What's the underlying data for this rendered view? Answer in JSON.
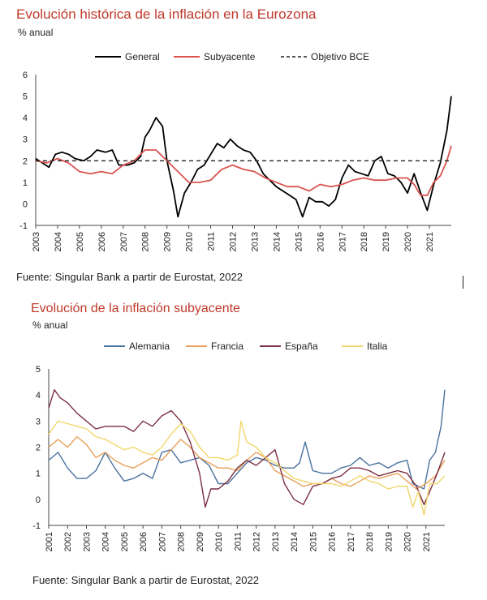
{
  "chart_data": [
    {
      "type": "line",
      "title": "Evolución histórica de la inflación en la Eurozona",
      "ylabel": "% anual",
      "ylim": [
        -1,
        6
      ],
      "yticks": [
        6,
        5,
        4,
        3,
        2,
        1,
        0,
        "-1"
      ],
      "x_ticks": [
        "2003",
        "2004",
        "2005",
        "2006",
        "2007",
        "2008",
        "2009",
        "2010",
        "2011",
        "2012",
        "2013",
        "2014",
        "2015",
        "2016",
        "2017",
        "2018",
        "2019",
        "2020",
        "2021"
      ],
      "legend_position": "top",
      "grid": false,
      "source": "Fuente: Singular Bank a partir de Eurostat, 2022",
      "series": [
        {
          "name": "General",
          "color": "#000000",
          "style": "solid",
          "x": [
            2003.0,
            2003.3,
            2003.6,
            2003.9,
            2004.2,
            2004.5,
            2004.8,
            2005.2,
            2005.5,
            2005.8,
            2006.2,
            2006.5,
            2006.8,
            2007.2,
            2007.5,
            2007.8,
            2008.0,
            2008.2,
            2008.5,
            2008.8,
            2009.0,
            2009.3,
            2009.5,
            2009.8,
            2010.1,
            2010.4,
            2010.7,
            2011.0,
            2011.3,
            2011.6,
            2011.9,
            2012.2,
            2012.5,
            2012.8,
            2013.1,
            2013.4,
            2013.7,
            2014.0,
            2014.3,
            2014.6,
            2014.9,
            2015.2,
            2015.5,
            2015.8,
            2016.1,
            2016.4,
            2016.7,
            2017.0,
            2017.3,
            2017.6,
            2017.9,
            2018.2,
            2018.5,
            2018.8,
            2019.1,
            2019.4,
            2019.7,
            2020.0,
            2020.3,
            2020.6,
            2020.9,
            2021.2,
            2021.5,
            2021.8,
            2022.0
          ],
          "y": [
            2.1,
            1.9,
            1.7,
            2.3,
            2.4,
            2.3,
            2.1,
            2.0,
            2.2,
            2.5,
            2.4,
            2.5,
            1.8,
            1.8,
            1.9,
            2.2,
            3.1,
            3.4,
            4.0,
            3.6,
            2.0,
            0.6,
            -0.6,
            0.5,
            1.0,
            1.6,
            1.8,
            2.3,
            2.8,
            2.6,
            3.0,
            2.7,
            2.5,
            2.4,
            2.0,
            1.4,
            1.1,
            0.8,
            0.6,
            0.4,
            0.2,
            -0.6,
            0.3,
            0.1,
            0.1,
            -0.1,
            0.2,
            1.2,
            1.8,
            1.5,
            1.4,
            1.3,
            2.0,
            2.2,
            1.4,
            1.3,
            1.0,
            0.5,
            1.4,
            0.5,
            -0.3,
            0.9,
            1.9,
            3.4,
            5.0
          ]
        },
        {
          "name": "Subyacente",
          "color": "#d9534f",
          "style": "solid",
          "x": [
            2003.0,
            2003.5,
            2004.0,
            2004.5,
            2005.0,
            2005.5,
            2006.0,
            2006.5,
            2007.0,
            2007.5,
            2008.0,
            2008.5,
            2009.0,
            2009.5,
            2010.0,
            2010.5,
            2011.0,
            2011.5,
            2012.0,
            2012.5,
            2013.0,
            2013.5,
            2014.0,
            2014.5,
            2015.0,
            2015.5,
            2016.0,
            2016.5,
            2017.0,
            2017.5,
            2018.0,
            2018.5,
            2019.0,
            2019.5,
            2020.0,
            2020.3,
            2020.6,
            2020.9,
            2021.2,
            2021.5,
            2021.8,
            2022.0
          ],
          "y": [
            2.0,
            1.9,
            2.1,
            1.9,
            1.5,
            1.4,
            1.5,
            1.4,
            1.8,
            2.0,
            2.5,
            2.5,
            2.0,
            1.5,
            1.0,
            1.0,
            1.1,
            1.6,
            1.8,
            1.6,
            1.5,
            1.2,
            1.0,
            0.8,
            0.8,
            0.6,
            0.9,
            0.8,
            0.9,
            1.1,
            1.2,
            1.1,
            1.1,
            1.2,
            1.2,
            0.9,
            0.4,
            0.4,
            1.0,
            1.3,
            2.0,
            2.7
          ]
        },
        {
          "name": "Objetivo BCE",
          "color": "#222222",
          "style": "dashed",
          "x": [
            2003.0,
            2022.0
          ],
          "y": [
            2.0,
            2.0
          ]
        }
      ]
    },
    {
      "type": "line",
      "title": "Evolución de la inflación subyacente",
      "ylabel": "% anual",
      "ylim": [
        -1,
        5
      ],
      "yticks": [
        5,
        4,
        3,
        2,
        1,
        0,
        "-1"
      ],
      "x_ticks": [
        "2001",
        "2002",
        "2003",
        "2004",
        "2005",
        "2006",
        "2007",
        "2008",
        "2009",
        "2010",
        "2011",
        "2012",
        "2013",
        "2014",
        "2015",
        "2016",
        "2017",
        "2018",
        "2019",
        "2020",
        "2021"
      ],
      "legend_position": "top",
      "grid": false,
      "source": "Fuente: Singular Bank a partir de Eurostat, 2022",
      "series": [
        {
          "name": "Alemania",
          "color": "#4a72a0",
          "style": "solid",
          "x": [
            2001.0,
            2001.5,
            2002.0,
            2002.5,
            2003.0,
            2003.5,
            2004.0,
            2004.5,
            2005.0,
            2005.5,
            2006.0,
            2006.5,
            2007.0,
            2007.5,
            2008.0,
            2008.5,
            2009.0,
            2009.5,
            2010.0,
            2010.5,
            2011.0,
            2011.5,
            2012.0,
            2012.5,
            2013.0,
            2013.5,
            2014.0,
            2014.3,
            2014.6,
            2015.0,
            2015.5,
            2016.0,
            2016.5,
            2017.0,
            2017.5,
            2018.0,
            2018.5,
            2019.0,
            2019.5,
            2020.0,
            2020.3,
            2020.6,
            2020.9,
            2021.2,
            2021.5,
            2021.8,
            2022.0
          ],
          "y": [
            1.5,
            1.8,
            1.2,
            0.8,
            0.8,
            1.1,
            1.8,
            1.2,
            0.7,
            0.8,
            1.0,
            0.8,
            1.8,
            1.9,
            1.4,
            1.5,
            1.6,
            1.3,
            0.6,
            0.6,
            1.0,
            1.4,
            1.6,
            1.5,
            1.3,
            1.2,
            1.2,
            1.4,
            2.2,
            1.1,
            1.0,
            1.0,
            1.2,
            1.3,
            1.6,
            1.3,
            1.4,
            1.2,
            1.4,
            1.5,
            0.6,
            0.5,
            0.4,
            1.5,
            1.8,
            2.8,
            4.2
          ]
        },
        {
          "name": "Francia",
          "color": "#e8a05a",
          "style": "solid",
          "x": [
            2001.0,
            2001.5,
            2002.0,
            2002.5,
            2003.0,
            2003.5,
            2004.0,
            2004.5,
            2005.0,
            2005.5,
            2006.0,
            2006.5,
            2007.0,
            2007.5,
            2008.0,
            2008.5,
            2009.0,
            2009.5,
            2010.0,
            2010.5,
            2011.0,
            2011.5,
            2012.0,
            2012.5,
            2013.0,
            2013.5,
            2014.0,
            2014.5,
            2015.0,
            2015.5,
            2016.0,
            2016.5,
            2017.0,
            2017.5,
            2018.0,
            2018.5,
            2019.0,
            2019.5,
            2020.0,
            2020.5,
            2021.0,
            2021.5,
            2022.0
          ],
          "y": [
            2.0,
            2.3,
            2.0,
            2.4,
            2.1,
            1.6,
            1.8,
            1.5,
            1.3,
            1.2,
            1.4,
            1.6,
            1.5,
            1.9,
            2.3,
            2.0,
            1.6,
            1.4,
            1.2,
            1.2,
            1.1,
            1.5,
            1.8,
            1.6,
            1.1,
            0.9,
            0.7,
            0.5,
            0.6,
            0.6,
            0.8,
            0.6,
            0.5,
            0.7,
            0.9,
            0.8,
            0.9,
            1.0,
            0.7,
            0.4,
            0.6,
            0.9,
            1.5
          ]
        },
        {
          "name": "España",
          "color": "#7b2f44",
          "style": "solid",
          "x": [
            2001.0,
            2001.3,
            2001.6,
            2002.0,
            2002.5,
            2003.0,
            2003.5,
            2004.0,
            2004.5,
            2005.0,
            2005.5,
            2006.0,
            2006.5,
            2007.0,
            2007.5,
            2008.0,
            2008.5,
            2009.0,
            2009.3,
            2009.6,
            2010.0,
            2010.5,
            2011.0,
            2011.5,
            2012.0,
            2012.5,
            2013.0,
            2013.5,
            2014.0,
            2014.5,
            2015.0,
            2015.5,
            2016.0,
            2016.5,
            2017.0,
            2017.5,
            2018.0,
            2018.5,
            2019.0,
            2019.5,
            2020.0,
            2020.5,
            2020.9,
            2021.2,
            2021.6,
            2022.0
          ],
          "y": [
            3.5,
            4.2,
            3.9,
            3.7,
            3.3,
            3.0,
            2.7,
            2.8,
            2.8,
            2.8,
            2.6,
            3.0,
            2.8,
            3.2,
            3.4,
            3.0,
            2.2,
            1.0,
            -0.3,
            0.4,
            0.4,
            0.7,
            1.2,
            1.5,
            1.3,
            1.6,
            1.9,
            0.6,
            0.0,
            -0.2,
            0.5,
            0.6,
            0.8,
            0.9,
            1.2,
            1.2,
            1.1,
            0.9,
            1.0,
            1.1,
            1.0,
            0.5,
            -0.2,
            0.3,
            1.0,
            1.8
          ]
        },
        {
          "name": "Italia",
          "color": "#f1d66b",
          "style": "solid",
          "x": [
            2001.0,
            2001.5,
            2002.0,
            2002.5,
            2003.0,
            2003.5,
            2004.0,
            2004.5,
            2005.0,
            2005.5,
            2006.0,
            2006.5,
            2007.0,
            2007.5,
            2008.0,
            2008.5,
            2009.0,
            2009.5,
            2010.0,
            2010.5,
            2011.0,
            2011.2,
            2011.5,
            2012.0,
            2012.5,
            2013.0,
            2013.5,
            2014.0,
            2014.5,
            2015.0,
            2015.5,
            2016.0,
            2016.5,
            2017.0,
            2017.5,
            2018.0,
            2018.5,
            2019.0,
            2019.5,
            2020.0,
            2020.3,
            2020.6,
            2020.9,
            2021.2,
            2021.6,
            2022.0
          ],
          "y": [
            2.5,
            3.0,
            2.9,
            2.8,
            2.7,
            2.4,
            2.3,
            2.1,
            1.9,
            2.0,
            1.8,
            1.7,
            2.0,
            2.5,
            2.9,
            2.6,
            2.0,
            1.6,
            1.6,
            1.5,
            1.7,
            3.0,
            2.2,
            2.0,
            1.6,
            1.4,
            1.1,
            0.8,
            0.7,
            0.6,
            0.6,
            0.6,
            0.5,
            0.7,
            0.9,
            0.7,
            0.6,
            0.4,
            0.5,
            0.5,
            -0.3,
            0.3,
            -0.6,
            0.6,
            0.6,
            0.9
          ]
        }
      ]
    }
  ]
}
